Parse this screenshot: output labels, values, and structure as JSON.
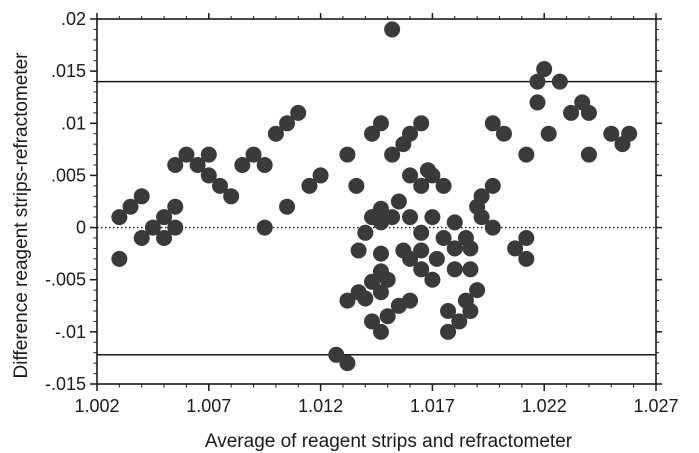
{
  "chart_data": {
    "type": "scatter",
    "title": "",
    "xlabel": "Average of reagent strips and refractometer",
    "ylabel": "Difference reagent strips-refractometer",
    "xlim": [
      1.002,
      1.027
    ],
    "ylim": [
      -0.015,
      0.02
    ],
    "x_ticks": [
      1.002,
      1.007,
      1.012,
      1.017,
      1.022,
      1.027
    ],
    "x_tick_labels": [
      "1.002",
      "1.007",
      "1.012",
      "1.017",
      "1.022",
      "1.027"
    ],
    "y_ticks": [
      0.02,
      0.015,
      0.01,
      0.005,
      0,
      -0.005,
      -0.01,
      -0.015
    ],
    "y_tick_labels": [
      ".02",
      ".015",
      ".01",
      ".005",
      "0",
      "-.005",
      "-.01",
      "-.015"
    ],
    "grid": false,
    "reference_lines": [
      {
        "y": 0.014,
        "style": "solid"
      },
      {
        "y": 0,
        "style": "dotted"
      },
      {
        "y": -0.0122,
        "style": "solid"
      }
    ],
    "marker_color": "#3a3a3a",
    "points": [
      [
        1.003,
        0.001
      ],
      [
        1.003,
        -0.003
      ],
      [
        1.0035,
        0.002
      ],
      [
        1.004,
        0.003
      ],
      [
        1.004,
        -0.001
      ],
      [
        1.0045,
        0.0
      ],
      [
        1.005,
        0.001
      ],
      [
        1.005,
        -0.001
      ],
      [
        1.0055,
        0.002
      ],
      [
        1.0055,
        0.006
      ],
      [
        1.0055,
        0.0
      ],
      [
        1.006,
        0.007
      ],
      [
        1.0065,
        0.006
      ],
      [
        1.007,
        0.005
      ],
      [
        1.007,
        0.007
      ],
      [
        1.0075,
        0.004
      ],
      [
        1.008,
        0.003
      ],
      [
        1.0085,
        0.006
      ],
      [
        1.009,
        0.007
      ],
      [
        1.0095,
        0.006
      ],
      [
        1.0095,
        0.0
      ],
      [
        1.01,
        0.009
      ],
      [
        1.0105,
        0.01
      ],
      [
        1.0105,
        0.002
      ],
      [
        1.011,
        0.011
      ],
      [
        1.0115,
        0.004
      ],
      [
        1.012,
        0.005
      ],
      [
        1.0127,
        -0.0122
      ],
      [
        1.0132,
        -0.013
      ],
      [
        1.0132,
        0.007
      ],
      [
        1.0132,
        -0.007
      ],
      [
        1.0136,
        0.004
      ],
      [
        1.0137,
        -0.0022
      ],
      [
        1.0137,
        -0.0062
      ],
      [
        1.014,
        -0.0005
      ],
      [
        1.014,
        -0.0068
      ],
      [
        1.0143,
        0.009
      ],
      [
        1.0143,
        0.001
      ],
      [
        1.0143,
        -0.0052
      ],
      [
        1.0143,
        -0.009
      ],
      [
        1.0147,
        0.01
      ],
      [
        1.0147,
        0.0018
      ],
      [
        1.0147,
        0.0005
      ],
      [
        1.0147,
        -0.0025
      ],
      [
        1.0147,
        -0.0042
      ],
      [
        1.0147,
        -0.0062
      ],
      [
        1.0147,
        -0.01
      ],
      [
        1.015,
        -0.005
      ],
      [
        1.015,
        -0.0085
      ],
      [
        1.0152,
        0.019
      ],
      [
        1.0152,
        0.007
      ],
      [
        1.0152,
        0.001
      ],
      [
        1.0155,
        0.0025
      ],
      [
        1.0155,
        -0.0075
      ],
      [
        1.0157,
        0.008
      ],
      [
        1.0157,
        -0.0022
      ],
      [
        1.016,
        0.009
      ],
      [
        1.016,
        0.005
      ],
      [
        1.016,
        0.001
      ],
      [
        1.016,
        -0.003
      ],
      [
        1.016,
        -0.007
      ],
      [
        1.0165,
        0.01
      ],
      [
        1.0165,
        0.004
      ],
      [
        1.0165,
        -0.0005
      ],
      [
        1.0165,
        -0.0022
      ],
      [
        1.0165,
        -0.004
      ],
      [
        1.0168,
        0.0055
      ],
      [
        1.017,
        0.005
      ],
      [
        1.017,
        0.001
      ],
      [
        1.017,
        -0.005
      ],
      [
        1.0172,
        -0.003
      ],
      [
        1.0175,
        0.004
      ],
      [
        1.0175,
        -0.001
      ],
      [
        1.0177,
        -0.008
      ],
      [
        1.0177,
        -0.01
      ],
      [
        1.018,
        0.0005
      ],
      [
        1.018,
        -0.002
      ],
      [
        1.018,
        -0.004
      ],
      [
        1.0182,
        -0.009
      ],
      [
        1.0185,
        -0.001
      ],
      [
        1.0185,
        -0.007
      ],
      [
        1.0187,
        -0.002
      ],
      [
        1.0187,
        -0.004
      ],
      [
        1.0187,
        -0.008
      ],
      [
        1.019,
        0.002
      ],
      [
        1.019,
        -0.006
      ],
      [
        1.0192,
        0.003
      ],
      [
        1.0192,
        0.001
      ],
      [
        1.0197,
        0.004
      ],
      [
        1.0197,
        0.0
      ],
      [
        1.0197,
        0.01
      ],
      [
        1.0202,
        0.009
      ],
      [
        1.0207,
        -0.002
      ],
      [
        1.0212,
        0.007
      ],
      [
        1.0212,
        -0.001
      ],
      [
        1.0212,
        -0.003
      ],
      [
        1.0217,
        0.012
      ],
      [
        1.0217,
        0.014
      ],
      [
        1.022,
        0.0152
      ],
      [
        1.0222,
        0.009
      ],
      [
        1.0227,
        0.014
      ],
      [
        1.0232,
        0.011
      ],
      [
        1.0237,
        0.012
      ],
      [
        1.024,
        0.011
      ],
      [
        1.024,
        0.007
      ],
      [
        1.025,
        0.009
      ],
      [
        1.0255,
        0.008
      ],
      [
        1.0258,
        0.009
      ]
    ]
  }
}
